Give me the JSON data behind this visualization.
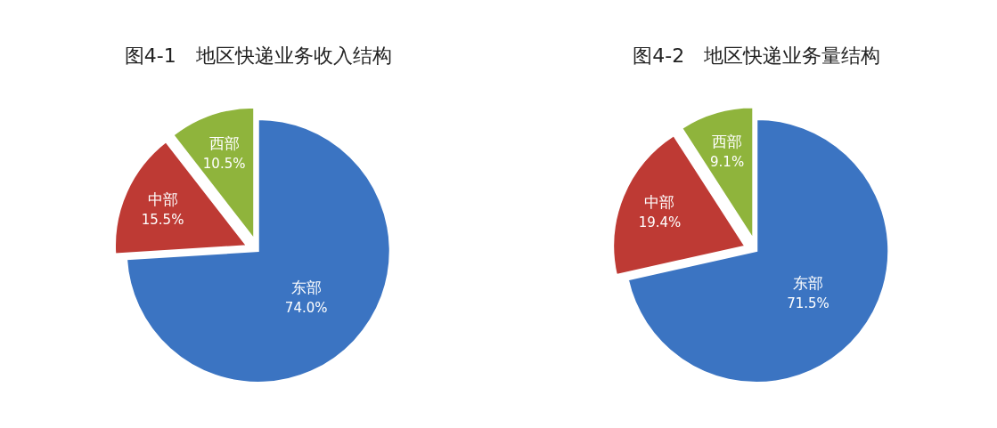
{
  "chart_data": [
    {
      "type": "pie",
      "title": "图4-1　地区快递业务收入结构",
      "categories": [
        "东部",
        "中部",
        "西部"
      ],
      "values": [
        74.0,
        15.5,
        10.5
      ],
      "colors": [
        "#3b74c2",
        "#be3a34",
        "#8fb43c"
      ],
      "value_labels": [
        "74.0%",
        "15.5%",
        "10.5%"
      ]
    },
    {
      "type": "pie",
      "title": "图4-2　地区快递业务量结构",
      "categories": [
        "东部",
        "中部",
        "西部"
      ],
      "values": [
        71.5,
        19.4,
        9.1
      ],
      "colors": [
        "#3b74c2",
        "#be3a34",
        "#8fb43c"
      ],
      "value_labels": [
        "71.5%",
        "19.4%",
        "9.1%"
      ]
    }
  ]
}
